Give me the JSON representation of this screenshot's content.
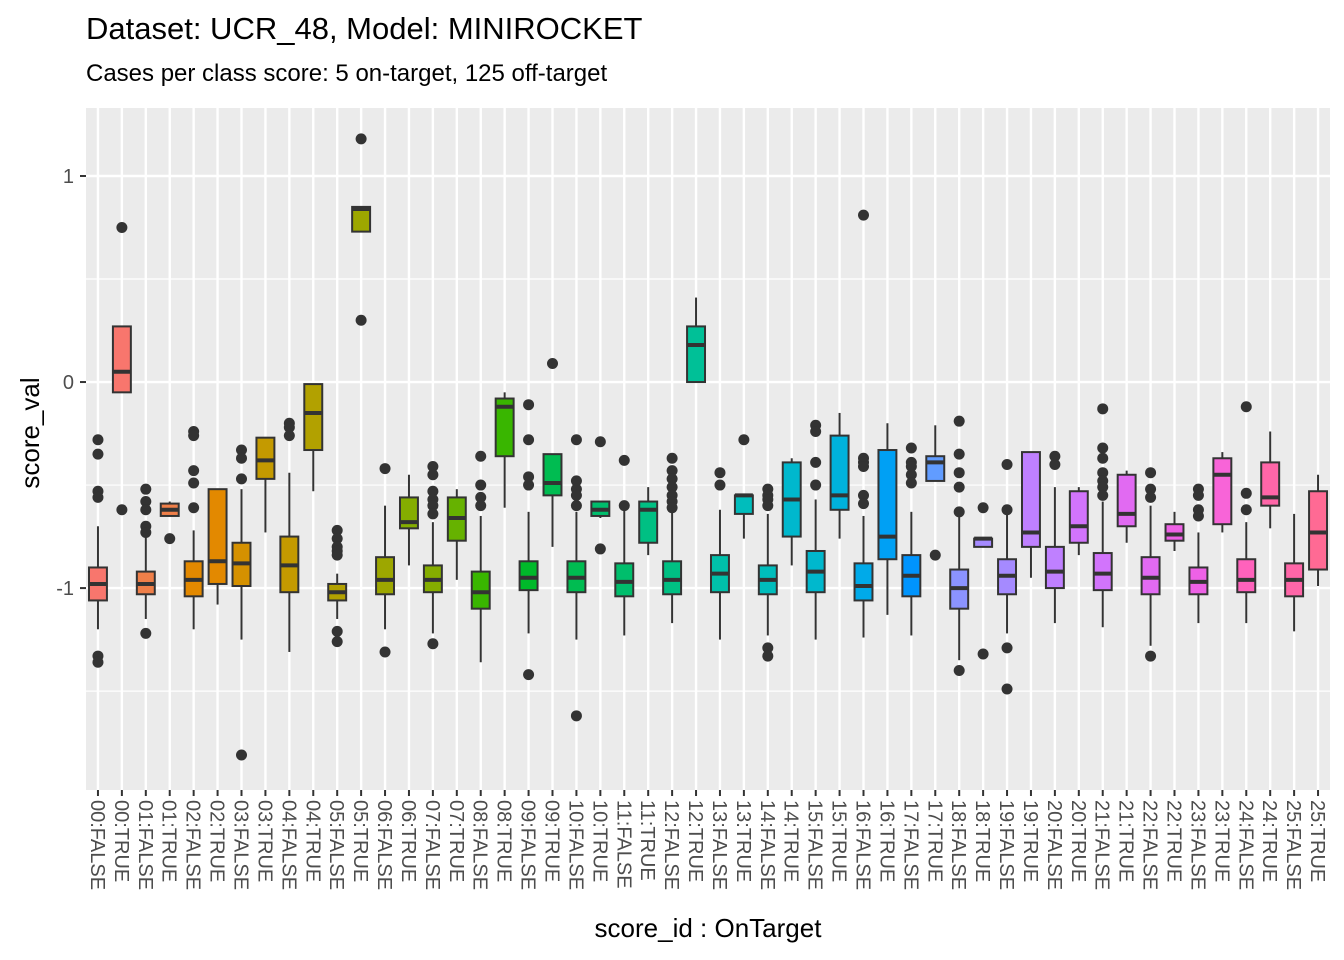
{
  "chart_data": {
    "type": "box",
    "title": "Dataset: UCR_48, Model: MINIROCKET",
    "subtitle": "Cases per class score: 5 on-target, 125 off-target",
    "xlabel": "score_id : OnTarget",
    "ylabel": "score_val",
    "ylim": [
      -1.98,
      1.33
    ],
    "yticks": [
      -1,
      0,
      1
    ],
    "grid": true,
    "legend": "none",
    "colors": [
      "#F8766D",
      "#EF7F49",
      "#E38900",
      "#D59100",
      "#C49A00",
      "#B2A100",
      "#9DA700",
      "#85AD00",
      "#66B200",
      "#39B600",
      "#00B92A",
      "#00BC51",
      "#00BE6C",
      "#00C083",
      "#00C097",
      "#00C0AA",
      "#00BDBC",
      "#00B8CD",
      "#00B2DC",
      "#00AAE9",
      "#00A0F4",
      "#0094FD",
      "#619CFF",
      "#8B93FF",
      "#A58AFF",
      "#BF80FF",
      "#D274FC",
      "#E16AF2",
      "#EE61E6",
      "#F864D8",
      "#FF62BC",
      "#FF66A8",
      "#FF6A94"
    ],
    "boxes": [
      {
        "label": "00:FALSE",
        "color": "#F8766D",
        "q1": -1.06,
        "median": -0.98,
        "q3": -0.9,
        "lower": -1.2,
        "upper": -0.7,
        "outliers": [
          -0.28,
          -0.35,
          -0.53,
          -0.56,
          -1.33,
          -1.36
        ]
      },
      {
        "label": "00:TRUE",
        "color": "#F8766D",
        "q1": -0.05,
        "median": 0.05,
        "q3": 0.27,
        "lower": -0.05,
        "upper": 0.27,
        "outliers": [
          0.75,
          -0.62
        ]
      },
      {
        "label": "01:FALSE",
        "color": "#EF7F49",
        "q1": -1.03,
        "median": -0.98,
        "q3": -0.92,
        "lower": -1.15,
        "upper": -0.75,
        "outliers": [
          -0.52,
          -0.58,
          -0.62,
          -0.7,
          -0.73,
          -1.22
        ]
      },
      {
        "label": "01:TRUE",
        "color": "#EF7F49",
        "q1": -0.65,
        "median": -0.62,
        "q3": -0.59,
        "lower": -0.65,
        "upper": -0.58,
        "outliers": [
          -0.76
        ]
      },
      {
        "label": "02:FALSE",
        "color": "#E38900",
        "q1": -1.04,
        "median": -0.96,
        "q3": -0.87,
        "lower": -1.2,
        "upper": -0.72,
        "outliers": [
          -0.24,
          -0.26,
          -0.43,
          -0.49,
          -0.61
        ]
      },
      {
        "label": "02:TRUE",
        "color": "#E38900",
        "q1": -0.98,
        "median": -0.87,
        "q3": -0.52,
        "lower": -1.08,
        "upper": -0.52,
        "outliers": []
      },
      {
        "label": "03:FALSE",
        "color": "#D59100",
        "q1": -0.99,
        "median": -0.88,
        "q3": -0.78,
        "lower": -1.25,
        "upper": -0.52,
        "outliers": [
          -0.33,
          -0.37,
          -0.47,
          -1.81
        ]
      },
      {
        "label": "03:TRUE",
        "color": "#C49A00",
        "q1": -0.47,
        "median": -0.38,
        "q3": -0.27,
        "lower": -0.73,
        "upper": -0.27,
        "outliers": []
      },
      {
        "label": "04:FALSE",
        "color": "#C49A00",
        "q1": -1.02,
        "median": -0.89,
        "q3": -0.75,
        "lower": -1.31,
        "upper": -0.44,
        "outliers": [
          -0.2,
          -0.22,
          -0.26
        ]
      },
      {
        "label": "04:TRUE",
        "color": "#B2A100",
        "q1": -0.33,
        "median": -0.15,
        "q3": -0.01,
        "lower": -0.53,
        "upper": -0.01,
        "outliers": []
      },
      {
        "label": "05:FALSE",
        "color": "#B2A100",
        "q1": -1.06,
        "median": -1.02,
        "q3": -0.98,
        "lower": -1.15,
        "upper": -0.93,
        "outliers": [
          -0.72,
          -0.76,
          -0.8,
          -0.82,
          -0.84,
          -1.21,
          -1.26
        ]
      },
      {
        "label": "05:TRUE",
        "color": "#9DA700",
        "q1": 0.73,
        "median": 0.84,
        "q3": 0.85,
        "lower": 0.73,
        "upper": 0.85,
        "outliers": [
          1.18,
          0.3
        ]
      },
      {
        "label": "06:FALSE",
        "color": "#9DA700",
        "q1": -1.03,
        "median": -0.96,
        "q3": -0.85,
        "lower": -1.2,
        "upper": -0.6,
        "outliers": [
          -0.42,
          -1.31
        ]
      },
      {
        "label": "06:TRUE",
        "color": "#85AD00",
        "q1": -0.71,
        "median": -0.68,
        "q3": -0.56,
        "lower": -0.89,
        "upper": -0.45,
        "outliers": []
      },
      {
        "label": "07:FALSE",
        "color": "#85AD00",
        "q1": -1.02,
        "median": -0.96,
        "q3": -0.89,
        "lower": -1.22,
        "upper": -0.68,
        "outliers": [
          -0.41,
          -0.45,
          -0.53,
          -0.57,
          -0.6,
          -0.64,
          -1.27
        ]
      },
      {
        "label": "07:TRUE",
        "color": "#66B200",
        "q1": -0.77,
        "median": -0.66,
        "q3": -0.56,
        "lower": -0.96,
        "upper": -0.52,
        "outliers": []
      },
      {
        "label": "08:FALSE",
        "color": "#39B600",
        "q1": -1.1,
        "median": -1.02,
        "q3": -0.92,
        "lower": -1.36,
        "upper": -0.65,
        "outliers": [
          -0.36,
          -0.5,
          -0.56,
          -0.6
        ]
      },
      {
        "label": "08:TRUE",
        "color": "#39B600",
        "q1": -0.36,
        "median": -0.12,
        "q3": -0.08,
        "lower": -0.61,
        "upper": -0.05,
        "outliers": []
      },
      {
        "label": "09:FALSE",
        "color": "#00B92A",
        "q1": -1.01,
        "median": -0.95,
        "q3": -0.87,
        "lower": -1.22,
        "upper": -0.63,
        "outliers": [
          -0.11,
          -0.28,
          -0.46,
          -0.5,
          -1.42
        ]
      },
      {
        "label": "09:TRUE",
        "color": "#00BC51",
        "q1": -0.55,
        "median": -0.49,
        "q3": -0.35,
        "lower": -0.8,
        "upper": -0.35,
        "outliers": [
          0.09
        ]
      },
      {
        "label": "10:FALSE",
        "color": "#00BC51",
        "q1": -1.02,
        "median": -0.95,
        "q3": -0.87,
        "lower": -1.25,
        "upper": -0.63,
        "outliers": [
          -0.28,
          -0.48,
          -0.52,
          -0.55,
          -0.6,
          -1.62
        ]
      },
      {
        "label": "10:TRUE",
        "color": "#00BE6C",
        "q1": -0.65,
        "median": -0.62,
        "q3": -0.58,
        "lower": -0.66,
        "upper": -0.58,
        "outliers": [
          -0.29,
          -0.81
        ]
      },
      {
        "label": "11:FALSE",
        "color": "#00BE6C",
        "q1": -1.04,
        "median": -0.97,
        "q3": -0.88,
        "lower": -1.23,
        "upper": -0.62,
        "outliers": [
          -0.38,
          -0.6
        ]
      },
      {
        "label": "11:TRUE",
        "color": "#00C083",
        "q1": -0.78,
        "median": -0.62,
        "q3": -0.58,
        "lower": -0.84,
        "upper": -0.51,
        "outliers": []
      },
      {
        "label": "12:FALSE",
        "color": "#00C083",
        "q1": -1.03,
        "median": -0.96,
        "q3": -0.87,
        "lower": -1.17,
        "upper": -0.63,
        "outliers": [
          -0.37,
          -0.43,
          -0.47,
          -0.51,
          -0.55,
          -0.58,
          -0.61
        ]
      },
      {
        "label": "12:TRUE",
        "color": "#00C097",
        "q1": 0.0,
        "median": 0.18,
        "q3": 0.27,
        "lower": 0.0,
        "upper": 0.41,
        "outliers": []
      },
      {
        "label": "13:FALSE",
        "color": "#00C0AA",
        "q1": -1.02,
        "median": -0.93,
        "q3": -0.84,
        "lower": -1.25,
        "upper": -0.62,
        "outliers": [
          -0.44,
          -0.5
        ]
      },
      {
        "label": "13:TRUE",
        "color": "#00BDBC",
        "q1": -0.64,
        "median": -0.55,
        "q3": -0.55,
        "lower": -0.76,
        "upper": -0.55,
        "outliers": [
          -0.28
        ]
      },
      {
        "label": "14:FALSE",
        "color": "#00BDBC",
        "q1": -1.03,
        "median": -0.96,
        "q3": -0.89,
        "lower": -1.23,
        "upper": -0.64,
        "outliers": [
          -0.52,
          -0.55,
          -0.57,
          -0.6,
          -1.29,
          -1.33
        ]
      },
      {
        "label": "14:TRUE",
        "color": "#00B8CD",
        "q1": -0.75,
        "median": -0.57,
        "q3": -0.39,
        "lower": -0.89,
        "upper": -0.37,
        "outliers": []
      },
      {
        "label": "15:FALSE",
        "color": "#00B8CD",
        "q1": -1.02,
        "median": -0.92,
        "q3": -0.82,
        "lower": -1.25,
        "upper": -0.57,
        "outliers": [
          -0.21,
          -0.24,
          -0.39,
          -0.5
        ]
      },
      {
        "label": "15:TRUE",
        "color": "#00B2DC",
        "q1": -0.62,
        "median": -0.55,
        "q3": -0.26,
        "lower": -0.76,
        "upper": -0.15,
        "outliers": []
      },
      {
        "label": "16:FALSE",
        "color": "#00AAE9",
        "q1": -1.06,
        "median": -0.99,
        "q3": -0.88,
        "lower": -1.24,
        "upper": -0.65,
        "outliers": [
          0.81,
          -0.37,
          -0.39,
          -0.41,
          -0.55,
          -0.59
        ]
      },
      {
        "label": "16:TRUE",
        "color": "#00A0F4",
        "q1": -0.86,
        "median": -0.75,
        "q3": -0.33,
        "lower": -1.13,
        "upper": -0.2,
        "outliers": []
      },
      {
        "label": "17:FALSE",
        "color": "#0094FD",
        "q1": -1.04,
        "median": -0.94,
        "q3": -0.84,
        "lower": -1.23,
        "upper": -0.63,
        "outliers": [
          -0.32,
          -0.39,
          -0.41,
          -0.45,
          -0.49
        ]
      },
      {
        "label": "17:TRUE",
        "color": "#619CFF",
        "q1": -0.48,
        "median": -0.39,
        "q3": -0.36,
        "lower": -0.48,
        "upper": -0.21,
        "outliers": [
          -0.84
        ]
      },
      {
        "label": "18:FALSE",
        "color": "#8B93FF",
        "q1": -1.1,
        "median": -1.0,
        "q3": -0.91,
        "lower": -1.35,
        "upper": -0.65,
        "outliers": [
          -0.19,
          -0.35,
          -0.44,
          -0.51,
          -0.63,
          -1.4
        ]
      },
      {
        "label": "18:TRUE",
        "color": "#A58AFF",
        "q1": -0.8,
        "median": -0.76,
        "q3": -0.76,
        "lower": -0.8,
        "upper": -0.76,
        "outliers": [
          -0.61,
          -1.32
        ]
      },
      {
        "label": "19:FALSE",
        "color": "#A58AFF",
        "q1": -1.03,
        "median": -0.94,
        "q3": -0.86,
        "lower": -1.22,
        "upper": -0.64,
        "outliers": [
          -0.4,
          -0.62,
          -1.29,
          -1.49
        ]
      },
      {
        "label": "19:TRUE",
        "color": "#BF80FF",
        "q1": -0.8,
        "median": -0.73,
        "q3": -0.34,
        "lower": -0.95,
        "upper": -0.34,
        "outliers": []
      },
      {
        "label": "20:FALSE",
        "color": "#BF80FF",
        "q1": -1.0,
        "median": -0.92,
        "q3": -0.8,
        "lower": -1.17,
        "upper": -0.51,
        "outliers": [
          -0.36,
          -0.4
        ]
      },
      {
        "label": "20:TRUE",
        "color": "#D274FC",
        "q1": -0.78,
        "median": -0.7,
        "q3": -0.53,
        "lower": -0.84,
        "upper": -0.51,
        "outliers": []
      },
      {
        "label": "21:FALSE",
        "color": "#D274FC",
        "q1": -1.01,
        "median": -0.93,
        "q3": -0.83,
        "lower": -1.19,
        "upper": -0.58,
        "outliers": [
          -0.13,
          -0.32,
          -0.37,
          -0.44,
          -0.48,
          -0.51,
          -0.55
        ]
      },
      {
        "label": "21:TRUE",
        "color": "#E16AF2",
        "q1": -0.7,
        "median": -0.64,
        "q3": -0.45,
        "lower": -0.78,
        "upper": -0.43,
        "outliers": []
      },
      {
        "label": "22:FALSE",
        "color": "#E16AF2",
        "q1": -1.03,
        "median": -0.95,
        "q3": -0.85,
        "lower": -1.28,
        "upper": -0.6,
        "outliers": [
          -0.44,
          -0.52,
          -0.56,
          -1.33
        ]
      },
      {
        "label": "22:TRUE",
        "color": "#EE61E6",
        "q1": -0.77,
        "median": -0.74,
        "q3": -0.69,
        "lower": -0.82,
        "upper": -0.63,
        "outliers": []
      },
      {
        "label": "23:FALSE",
        "color": "#EE61E6",
        "q1": -1.03,
        "median": -0.97,
        "q3": -0.9,
        "lower": -1.17,
        "upper": -0.73,
        "outliers": [
          -0.52,
          -0.55,
          -0.62,
          -0.65
        ]
      },
      {
        "label": "23:TRUE",
        "color": "#F864D8",
        "q1": -0.69,
        "median": -0.45,
        "q3": -0.37,
        "lower": -0.73,
        "upper": -0.34,
        "outliers": []
      },
      {
        "label": "24:FALSE",
        "color": "#FF62BC",
        "q1": -1.02,
        "median": -0.96,
        "q3": -0.86,
        "lower": -1.17,
        "upper": -0.68,
        "outliers": [
          -0.12,
          -0.54,
          -0.62
        ]
      },
      {
        "label": "24:TRUE",
        "color": "#FF66A8",
        "q1": -0.6,
        "median": -0.56,
        "q3": -0.39,
        "lower": -0.71,
        "upper": -0.24,
        "outliers": []
      },
      {
        "label": "25:FALSE",
        "color": "#FF66A8",
        "q1": -1.04,
        "median": -0.96,
        "q3": -0.88,
        "lower": -1.21,
        "upper": -0.64,
        "outliers": []
      },
      {
        "label": "25:TRUE",
        "color": "#FF6A94",
        "q1": -0.91,
        "median": -0.73,
        "q3": -0.53,
        "lower": -0.99,
        "upper": -0.45,
        "outliers": []
      }
    ]
  }
}
